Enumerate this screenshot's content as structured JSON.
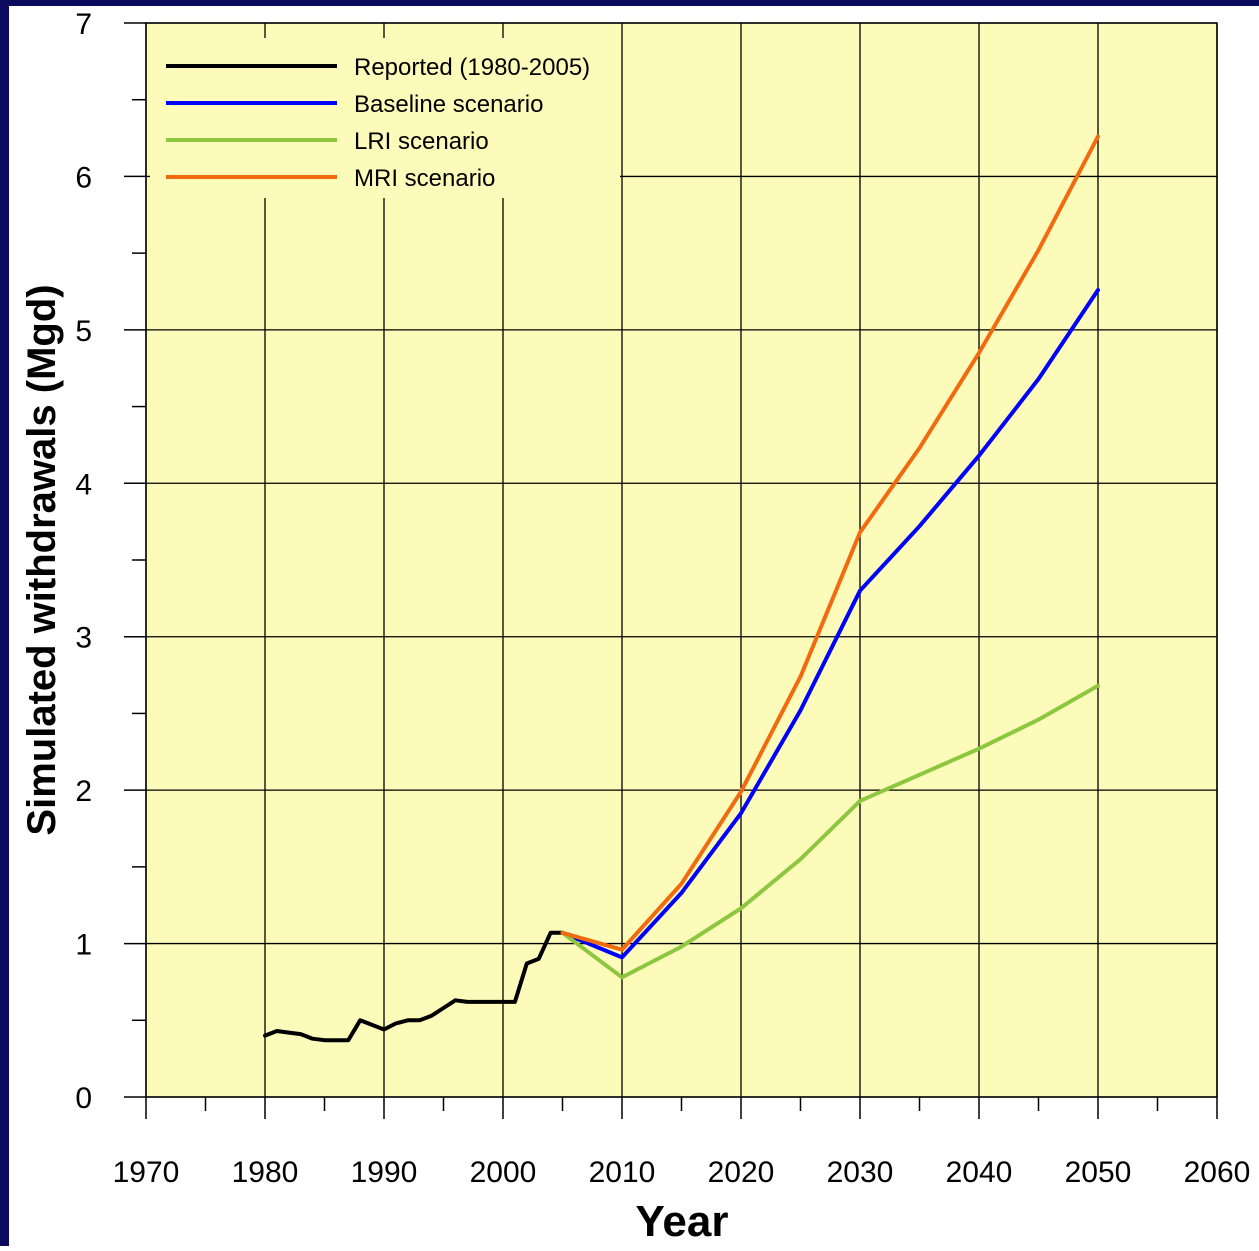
{
  "colors": {
    "border": "#0a0a5e",
    "background": "#ffffff",
    "plot_background": "#fdfbba",
    "grid": "#000000"
  },
  "chart_data": {
    "type": "line",
    "xlabel": "Year",
    "ylabel": "Simulated withdrawals (Mgd)",
    "xlim": [
      1970,
      2060
    ],
    "ylim": [
      0,
      7
    ],
    "x_ticks": [
      1970,
      1980,
      1990,
      2000,
      2010,
      2020,
      2030,
      2040,
      2050,
      2060
    ],
    "y_ticks": [
      0,
      1,
      2,
      3,
      4,
      5,
      6,
      7
    ],
    "grid": true,
    "legend_position": "top-left",
    "series": [
      {
        "name": "Reported (1980-2005)",
        "color": "#000000",
        "x": [
          1980,
          1981,
          1982,
          1983,
          1984,
          1985,
          1986,
          1987,
          1988,
          1989,
          1990,
          1991,
          1992,
          1993,
          1994,
          1995,
          1996,
          1997,
          1998,
          1999,
          2000,
          2001,
          2002,
          2003,
          2004,
          2005
        ],
        "y": [
          0.4,
          0.43,
          0.42,
          0.41,
          0.38,
          0.37,
          0.37,
          0.37,
          0.5,
          0.47,
          0.44,
          0.48,
          0.5,
          0.5,
          0.53,
          0.58,
          0.63,
          0.62,
          0.62,
          0.62,
          0.62,
          0.62,
          0.87,
          0.9,
          1.07,
          1.07
        ]
      },
      {
        "name": "Baseline scenario",
        "color": "#0000ff",
        "x": [
          2005,
          2010,
          2015,
          2020,
          2025,
          2030,
          2035,
          2040,
          2045,
          2050
        ],
        "y": [
          1.07,
          0.91,
          1.33,
          1.85,
          2.52,
          3.3,
          3.72,
          4.18,
          4.68,
          5.26
        ]
      },
      {
        "name": "LRI scenario",
        "color": "#8dc63f",
        "x": [
          2005,
          2010,
          2015,
          2020,
          2025,
          2030,
          2035,
          2040,
          2045,
          2050
        ],
        "y": [
          1.07,
          0.78,
          0.98,
          1.23,
          1.55,
          1.93,
          2.1,
          2.27,
          2.46,
          2.68
        ]
      },
      {
        "name": "MRI scenario",
        "color": "#f26a10",
        "x": [
          2005,
          2010,
          2015,
          2020,
          2025,
          2030,
          2035,
          2040,
          2045,
          2050
        ],
        "y": [
          1.07,
          0.96,
          1.39,
          1.99,
          2.74,
          3.68,
          4.23,
          4.85,
          5.52,
          6.26
        ]
      }
    ]
  }
}
